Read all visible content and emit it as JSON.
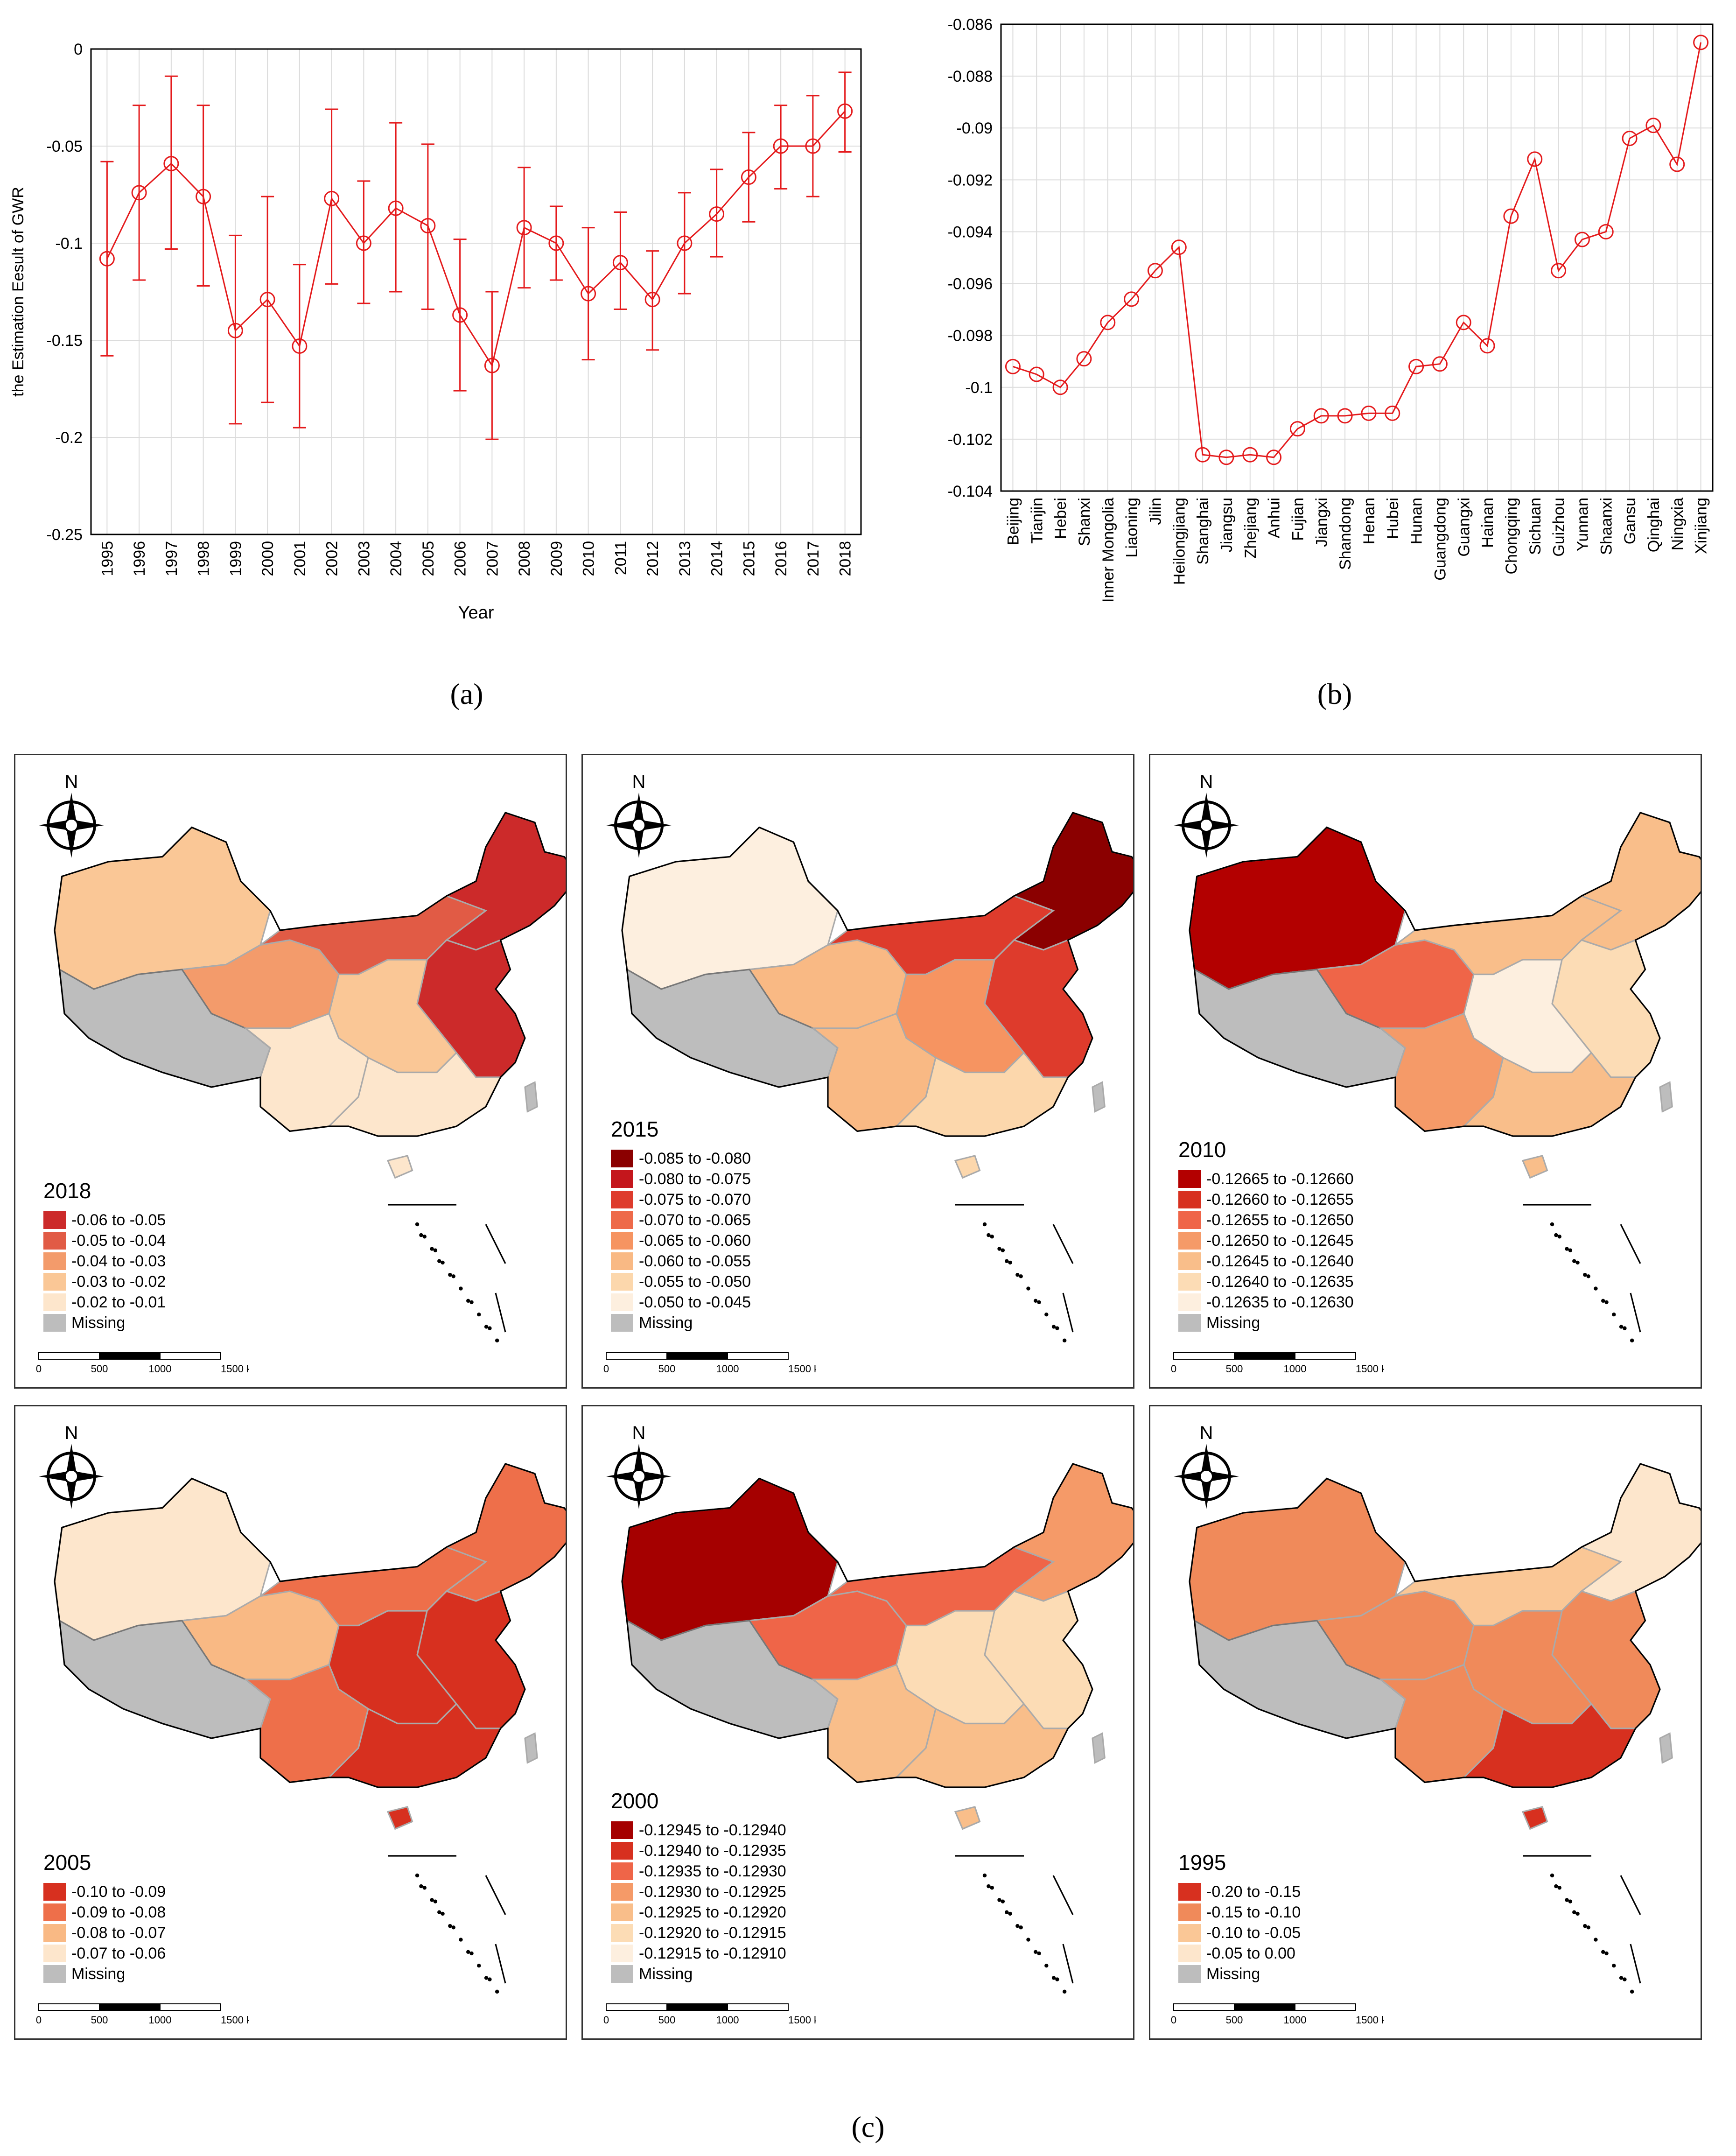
{
  "chart_data": [
    {
      "type": "line",
      "panel": "a",
      "title": "",
      "xlabel": "Year",
      "ylabel": "the Estimation Eesult of GWR",
      "ylim": [
        -0.25,
        0
      ],
      "yticks": [
        "0",
        "-0.05",
        "-0.1",
        "-0.15",
        "-0.2",
        "-0.25"
      ],
      "ytick_values": [
        0,
        -0.05,
        -0.1,
        -0.15,
        -0.2,
        -0.25
      ],
      "categories": [
        "1995",
        "1996",
        "1997",
        "1998",
        "1999",
        "2000",
        "2001",
        "2002",
        "2003",
        "2004",
        "2005",
        "2006",
        "2007",
        "2008",
        "2009",
        "2010",
        "2011",
        "2012",
        "2013",
        "2014",
        "2015",
        "2016",
        "2017",
        "2018"
      ],
      "values": [
        -0.108,
        -0.074,
        -0.059,
        -0.076,
        -0.145,
        -0.129,
        -0.153,
        -0.077,
        -0.1,
        -0.082,
        -0.091,
        -0.137,
        -0.163,
        -0.092,
        -0.1,
        -0.126,
        -0.11,
        -0.129,
        -0.1,
        -0.085,
        -0.066,
        -0.05,
        -0.05,
        -0.032
      ],
      "err_high": [
        -0.058,
        -0.029,
        -0.014,
        -0.029,
        -0.096,
        -0.076,
        -0.111,
        -0.031,
        -0.068,
        -0.038,
        -0.049,
        -0.098,
        -0.125,
        -0.061,
        -0.081,
        -0.092,
        -0.084,
        -0.104,
        -0.074,
        -0.062,
        -0.043,
        -0.029,
        -0.024,
        -0.012
      ],
      "err_low": [
        -0.158,
        -0.119,
        -0.103,
        -0.122,
        -0.193,
        -0.182,
        -0.195,
        -0.121,
        -0.131,
        -0.125,
        -0.134,
        -0.176,
        -0.201,
        -0.123,
        -0.119,
        -0.16,
        -0.134,
        -0.155,
        -0.126,
        -0.107,
        -0.089,
        -0.072,
        -0.076,
        -0.053
      ],
      "grid": true,
      "color": "#e41a1c"
    },
    {
      "type": "line",
      "panel": "b",
      "title": "",
      "xlabel": "",
      "ylabel": "",
      "ylim": [
        -0.104,
        -0.086
      ],
      "yticks": [
        "-0.086",
        "-0.088",
        "-0.09",
        "-0.092",
        "-0.094",
        "-0.096",
        "-0.098",
        "-0.1",
        "-0.102",
        "-0.104"
      ],
      "ytick_values": [
        -0.086,
        -0.088,
        -0.09,
        -0.092,
        -0.094,
        -0.096,
        -0.098,
        -0.1,
        -0.102,
        -0.104
      ],
      "categories": [
        "Beijing",
        "Tianjin",
        "Hebei",
        "Shanxi",
        "Inner Mongolia",
        "Liaoning",
        "Jilin",
        "Heilongjiang",
        "Shanghai",
        "Jiangsu",
        "Zhejiang",
        "Anhui",
        "Fujian",
        "Jiangxi",
        "Shandong",
        "Henan",
        "Hubei",
        "Hunan",
        "Guangdong",
        "Guangxi",
        "Hainan",
        "Chongqing",
        "Sichuan",
        "Guizhou",
        "Yunnan",
        "Shaanxi",
        "Gansu",
        "Qinghai",
        "Ningxia",
        "Xinjiang"
      ],
      "values": [
        -0.0992,
        -0.0995,
        -0.1,
        -0.0989,
        -0.0975,
        -0.0966,
        -0.0955,
        -0.0946,
        -0.1026,
        -0.1027,
        -0.1026,
        -0.1027,
        -0.1016,
        -0.1011,
        -0.1011,
        -0.101,
        -0.101,
        -0.0992,
        -0.0991,
        -0.0975,
        -0.0984,
        -0.0934,
        -0.0912,
        -0.0955,
        -0.0943,
        -0.094,
        -0.0904,
        -0.0899,
        -0.0914,
        -0.0867
      ],
      "grid": true,
      "color": "#e41a1c"
    }
  ],
  "panel_labels": {
    "a": "(a)",
    "b": "(b)",
    "c": "(c)"
  },
  "maps": [
    {
      "year": "2018",
      "legend": [
        "-0.06 to -0.05",
        "-0.05 to -0.04",
        "-0.04 to -0.03",
        "-0.03 to -0.02",
        "-0.02 to -0.01",
        "Missing"
      ],
      "colors": [
        "#cc2a2a",
        "#e15b45",
        "#f39b6b",
        "#fac796",
        "#fde6cc",
        "#bdbdbd"
      ],
      "regions": {
        "xinjiang": "#fac796",
        "qinghai": "#f39b6b",
        "north": "#e15b45",
        "northeast": "#cc2a2a",
        "east": "#cc2a2a",
        "south": "#fde6cc",
        "southwest": "#fde6cc",
        "center": "#fac796"
      }
    },
    {
      "year": "2015",
      "legend": [
        "-0.085 to -0.080",
        "-0.080 to -0.075",
        "-0.075 to -0.070",
        "-0.070 to -0.065",
        "-0.065 to -0.060",
        "-0.060 to -0.055",
        "-0.055 to -0.050",
        "-0.050 to -0.045",
        "Missing"
      ],
      "colors": [
        "#8b0000",
        "#c4161c",
        "#de3b2c",
        "#ee6a4a",
        "#f69461",
        "#f9b984",
        "#fcd7ac",
        "#fdefdf",
        "#bdbdbd"
      ],
      "regions": {
        "xinjiang": "#fdefdf",
        "qinghai": "#f9b984",
        "north": "#de3b2c",
        "northeast": "#8b0000",
        "east": "#de3b2c",
        "south": "#fcd7ac",
        "southwest": "#f9b984",
        "center": "#f69461"
      }
    },
    {
      "year": "2010",
      "legend": [
        "-0.12665 to -0.12660",
        "-0.12660 to -0.12655",
        "-0.12655 to -0.12650",
        "-0.12650 to -0.12645",
        "-0.12645 to -0.12640",
        "-0.12640 to -0.12635",
        "-0.12635 to -0.12630",
        "Missing"
      ],
      "colors": [
        "#b30000",
        "#d7301f",
        "#ef6548",
        "#f59a68",
        "#f9be8a",
        "#fcdcb5",
        "#fdefdf",
        "#bdbdbd"
      ],
      "regions": {
        "xinjiang": "#b30000",
        "qinghai": "#ef6548",
        "north": "#f9be8a",
        "northeast": "#f9be8a",
        "east": "#fcdcb5",
        "south": "#f9be8a",
        "southwest": "#f59a68",
        "center": "#fdefdf"
      }
    },
    {
      "year": "2005",
      "legend": [
        "-0.10 to -0.09",
        "-0.09 to -0.08",
        "-0.08 to -0.07",
        "-0.07 to -0.06",
        "Missing"
      ],
      "colors": [
        "#d7301f",
        "#ee6f4a",
        "#f9b984",
        "#fde6cc",
        "#bdbdbd"
      ],
      "regions": {
        "xinjiang": "#fde6cc",
        "qinghai": "#f9b984",
        "north": "#ee6f4a",
        "northeast": "#ee6f4a",
        "east": "#d7301f",
        "south": "#d7301f",
        "southwest": "#ee6f4a",
        "center": "#d7301f"
      }
    },
    {
      "year": "2000",
      "legend": [
        "-0.12945 to -0.12940",
        "-0.12940 to -0.12935",
        "-0.12935 to -0.12930",
        "-0.12930 to -0.12925",
        "-0.12925 to -0.12920",
        "-0.12920 to -0.12915",
        "-0.12915 to -0.12910",
        "Missing"
      ],
      "colors": [
        "#a50000",
        "#d7301f",
        "#ef6548",
        "#f59a68",
        "#f9be8a",
        "#fcdcb5",
        "#fdefdf",
        "#bdbdbd"
      ],
      "regions": {
        "xinjiang": "#a50000",
        "qinghai": "#ef6548",
        "north": "#ef6548",
        "northeast": "#f59a68",
        "east": "#fcdcb5",
        "south": "#f9be8a",
        "southwest": "#f9be8a",
        "center": "#fcdcb5"
      }
    },
    {
      "year": "1995",
      "legend": [
        "-0.20 to -0.15",
        "-0.15 to -0.10",
        "-0.10 to -0.05",
        "-0.05 to 0.00",
        "Missing"
      ],
      "colors": [
        "#d7301f",
        "#f08a5a",
        "#fac796",
        "#fde6cc",
        "#bdbdbd"
      ],
      "regions": {
        "xinjiang": "#f08a5a",
        "qinghai": "#f08a5a",
        "north": "#fac796",
        "northeast": "#fde6cc",
        "east": "#f08a5a",
        "south": "#d7301f",
        "southwest": "#f08a5a",
        "center": "#f08a5a"
      }
    }
  ],
  "scalebar": {
    "labels": [
      "0",
      "500",
      "1000",
      "1500 km"
    ]
  },
  "north_label": "N"
}
